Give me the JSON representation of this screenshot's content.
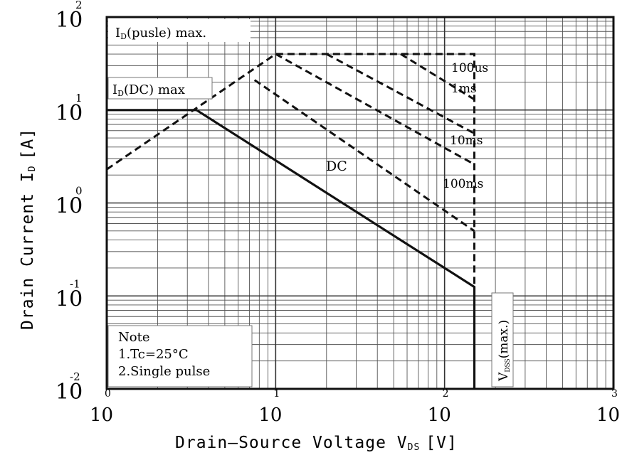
{
  "chart_data": {
    "type": "line",
    "x_scale": "log",
    "y_scale": "log",
    "xlim": [
      1,
      1000
    ],
    "ylim": [
      0.01,
      100
    ],
    "grid": true,
    "xlabel": "Drain–Source  Voltage  V",
    "xlabel_sub": "DS",
    "xlabel_unit": "[V]",
    "ylabel": "Drain  Current  I",
    "ylabel_sub": "D",
    "ylabel_unit": "[A]",
    "x_ticks": [
      {
        "base": "10",
        "exp": "0",
        "value": 1
      },
      {
        "base": "10",
        "exp": "1",
        "value": 10
      },
      {
        "base": "10",
        "exp": "2",
        "value": 100
      },
      {
        "base": "10",
        "exp": "3",
        "value": 1000
      }
    ],
    "y_ticks": [
      {
        "base": "10",
        "exp": "2",
        "value": 100
      },
      {
        "base": "10",
        "exp": "1",
        "value": 10
      },
      {
        "base": "10",
        "exp": "0",
        "value": 1
      },
      {
        "base": "10",
        "exp": "-1",
        "value": 0.1
      },
      {
        "base": "10",
        "exp": "-2",
        "value": 0.01
      }
    ],
    "series": [
      {
        "name": "DC",
        "style": "solid",
        "x": [
          1,
          3.4,
          150,
          150
        ],
        "y": [
          10,
          10,
          0.125,
          0.01
        ]
      },
      {
        "name": "",
        "style": "dashed",
        "x": [
          1,
          10,
          150,
          150
        ],
        "y": [
          2.3,
          40,
          40,
          0.09
        ]
      },
      {
        "name": "100us",
        "style": "dashed",
        "x": [
          55,
          150
        ],
        "y": [
          40,
          13
        ]
      },
      {
        "name": "1ms",
        "style": "dashed",
        "x": [
          20,
          150
        ],
        "y": [
          40,
          5.6
        ]
      },
      {
        "name": "10ms",
        "style": "dashed",
        "x": [
          10,
          150
        ],
        "y": [
          40,
          2.6
        ]
      },
      {
        "name": "100ms",
        "style": "dashed",
        "x": [
          7.5,
          150
        ],
        "y": [
          21,
          0.5
        ]
      }
    ],
    "annotations": [
      {
        "text": "I",
        "sub": "D",
        "rest": "(pusle)  max."
      },
      {
        "text": "I",
        "sub": "D",
        "rest": "(DC)  max"
      },
      {
        "text": "V",
        "sub": "DSS",
        "rest": "(max.)"
      }
    ],
    "note": {
      "title": "Note",
      "lines": [
        "1.Tc=25°C",
        "2.Single  pulse"
      ]
    }
  }
}
